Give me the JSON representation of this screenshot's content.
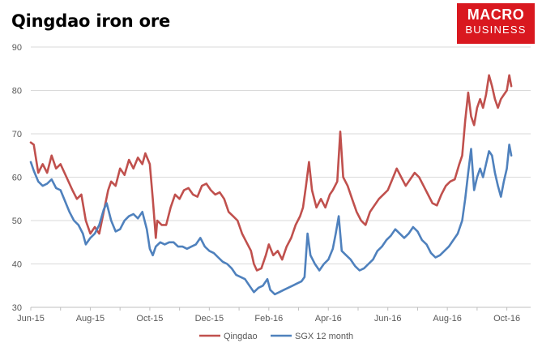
{
  "chart_data": {
    "type": "line",
    "title": "Qingdao iron ore",
    "xlabel": "",
    "ylabel": "",
    "ylim": [
      30,
      90
    ],
    "yticks": [
      30,
      40,
      50,
      60,
      70,
      80,
      90
    ],
    "x_tick_labels": [
      "Jun-15",
      "Aug-15",
      "Oct-15",
      "Dec-15",
      "Feb-16",
      "Apr-16",
      "Jun-16",
      "Aug-16",
      "Oct-16"
    ],
    "x_tick_months": [
      0,
      2,
      4,
      6,
      8,
      10,
      12,
      14,
      16
    ],
    "grid": true,
    "legend_position": "bottom",
    "series": [
      {
        "name": "Qingdao",
        "color": "#c0504d",
        "points": [
          [
            0.0,
            68.0
          ],
          [
            0.1,
            67.5
          ],
          [
            0.25,
            61.0
          ],
          [
            0.4,
            63.0
          ],
          [
            0.55,
            61.0
          ],
          [
            0.7,
            65.0
          ],
          [
            0.85,
            62.0
          ],
          [
            1.0,
            63.0
          ],
          [
            1.2,
            60.0
          ],
          [
            1.4,
            57.0
          ],
          [
            1.55,
            55.0
          ],
          [
            1.7,
            56.0
          ],
          [
            1.85,
            50.0
          ],
          [
            2.0,
            47.0
          ],
          [
            2.15,
            48.5
          ],
          [
            2.3,
            47.0
          ],
          [
            2.45,
            52.0
          ],
          [
            2.6,
            57.0
          ],
          [
            2.7,
            59.0
          ],
          [
            2.85,
            58.0
          ],
          [
            3.0,
            62.0
          ],
          [
            3.15,
            60.5
          ],
          [
            3.3,
            64.0
          ],
          [
            3.45,
            62.0
          ],
          [
            3.6,
            64.5
          ],
          [
            3.75,
            63.0
          ],
          [
            3.85,
            65.5
          ],
          [
            4.0,
            63.0
          ],
          [
            4.1,
            55.0
          ],
          [
            4.2,
            46.0
          ],
          [
            4.25,
            50.0
          ],
          [
            4.4,
            49.0
          ],
          [
            4.55,
            49.0
          ],
          [
            4.7,
            53.0
          ],
          [
            4.85,
            56.0
          ],
          [
            5.0,
            55.0
          ],
          [
            5.15,
            57.0
          ],
          [
            5.3,
            57.5
          ],
          [
            5.45,
            56.0
          ],
          [
            5.6,
            55.5
          ],
          [
            5.75,
            58.0
          ],
          [
            5.9,
            58.5
          ],
          [
            6.05,
            57.0
          ],
          [
            6.2,
            56.0
          ],
          [
            6.35,
            56.5
          ],
          [
            6.5,
            55.0
          ],
          [
            6.65,
            52.0
          ],
          [
            6.8,
            51.0
          ],
          [
            6.95,
            50.0
          ],
          [
            7.1,
            47.0
          ],
          [
            7.25,
            45.0
          ],
          [
            7.4,
            43.0
          ],
          [
            7.5,
            40.0
          ],
          [
            7.6,
            38.5
          ],
          [
            7.75,
            39.0
          ],
          [
            7.9,
            42.0
          ],
          [
            8.0,
            44.5
          ],
          [
            8.15,
            42.0
          ],
          [
            8.3,
            43.0
          ],
          [
            8.45,
            41.0
          ],
          [
            8.6,
            44.0
          ],
          [
            8.75,
            46.0
          ],
          [
            8.9,
            49.0
          ],
          [
            9.05,
            51.0
          ],
          [
            9.15,
            53.0
          ],
          [
            9.25,
            58.0
          ],
          [
            9.35,
            63.5
          ],
          [
            9.45,
            57.0
          ],
          [
            9.6,
            53.0
          ],
          [
            9.75,
            55.0
          ],
          [
            9.9,
            53.0
          ],
          [
            10.05,
            56.0
          ],
          [
            10.15,
            57.0
          ],
          [
            10.3,
            59.0
          ],
          [
            10.4,
            70.5
          ],
          [
            10.5,
            60.0
          ],
          [
            10.65,
            58.0
          ],
          [
            10.8,
            55.0
          ],
          [
            10.95,
            52.0
          ],
          [
            11.1,
            50.0
          ],
          [
            11.25,
            49.0
          ],
          [
            11.4,
            52.0
          ],
          [
            11.55,
            53.5
          ],
          [
            11.7,
            55.0
          ],
          [
            11.85,
            56.0
          ],
          [
            12.0,
            57.0
          ],
          [
            12.15,
            59.5
          ],
          [
            12.3,
            62.0
          ],
          [
            12.45,
            60.0
          ],
          [
            12.6,
            58.0
          ],
          [
            12.75,
            59.5
          ],
          [
            12.9,
            61.0
          ],
          [
            13.05,
            60.0
          ],
          [
            13.2,
            58.0
          ],
          [
            13.35,
            56.0
          ],
          [
            13.5,
            54.0
          ],
          [
            13.65,
            53.5
          ],
          [
            13.8,
            56.0
          ],
          [
            13.95,
            58.0
          ],
          [
            14.1,
            59.0
          ],
          [
            14.25,
            59.5
          ],
          [
            14.4,
            63.0
          ],
          [
            14.5,
            65.0
          ],
          [
            14.6,
            73.0
          ],
          [
            14.7,
            79.5
          ],
          [
            14.8,
            74.0
          ],
          [
            14.9,
            72.0
          ],
          [
            15.0,
            76.0
          ],
          [
            15.1,
            78.0
          ],
          [
            15.2,
            76.0
          ],
          [
            15.3,
            79.0
          ],
          [
            15.4,
            83.5
          ],
          [
            15.5,
            81.0
          ],
          [
            15.6,
            78.0
          ],
          [
            15.7,
            76.0
          ],
          [
            15.8,
            78.0
          ],
          [
            15.9,
            79.0
          ],
          [
            16.0,
            80.0
          ],
          [
            16.08,
            83.5
          ],
          [
            16.15,
            81.0
          ]
        ]
      },
      {
        "name": "SGX 12 month",
        "color": "#4f81bd",
        "points": [
          [
            0.0,
            63.5
          ],
          [
            0.1,
            61.5
          ],
          [
            0.25,
            59.0
          ],
          [
            0.4,
            58.0
          ],
          [
            0.55,
            58.5
          ],
          [
            0.7,
            59.5
          ],
          [
            0.85,
            57.5
          ],
          [
            1.0,
            57.0
          ],
          [
            1.15,
            54.5
          ],
          [
            1.3,
            52.0
          ],
          [
            1.45,
            50.0
          ],
          [
            1.6,
            49.0
          ],
          [
            1.75,
            47.0
          ],
          [
            1.85,
            44.5
          ],
          [
            2.0,
            46.0
          ],
          [
            2.15,
            47.0
          ],
          [
            2.3,
            49.0
          ],
          [
            2.45,
            52.5
          ],
          [
            2.55,
            54.0
          ],
          [
            2.7,
            50.0
          ],
          [
            2.85,
            47.5
          ],
          [
            3.0,
            48.0
          ],
          [
            3.15,
            50.0
          ],
          [
            3.3,
            51.0
          ],
          [
            3.45,
            51.5
          ],
          [
            3.6,
            50.5
          ],
          [
            3.75,
            52.0
          ],
          [
            3.9,
            48.0
          ],
          [
            4.0,
            43.5
          ],
          [
            4.1,
            42.0
          ],
          [
            4.2,
            44.0
          ],
          [
            4.35,
            45.0
          ],
          [
            4.5,
            44.5
          ],
          [
            4.65,
            45.0
          ],
          [
            4.8,
            45.0
          ],
          [
            4.95,
            44.0
          ],
          [
            5.1,
            44.0
          ],
          [
            5.25,
            43.5
          ],
          [
            5.4,
            44.0
          ],
          [
            5.55,
            44.5
          ],
          [
            5.7,
            46.0
          ],
          [
            5.85,
            44.0
          ],
          [
            6.0,
            43.0
          ],
          [
            6.15,
            42.5
          ],
          [
            6.3,
            41.5
          ],
          [
            6.45,
            40.5
          ],
          [
            6.6,
            40.0
          ],
          [
            6.75,
            39.0
          ],
          [
            6.9,
            37.5
          ],
          [
            7.05,
            37.0
          ],
          [
            7.2,
            36.5
          ],
          [
            7.35,
            35.0
          ],
          [
            7.5,
            33.5
          ],
          [
            7.65,
            34.5
          ],
          [
            7.8,
            35.0
          ],
          [
            7.95,
            36.5
          ],
          [
            8.05,
            34.0
          ],
          [
            8.2,
            33.0
          ],
          [
            8.35,
            33.5
          ],
          [
            8.5,
            34.0
          ],
          [
            8.65,
            34.5
          ],
          [
            8.8,
            35.0
          ],
          [
            8.95,
            35.5
          ],
          [
            9.1,
            36.0
          ],
          [
            9.2,
            37.0
          ],
          [
            9.3,
            47.0
          ],
          [
            9.4,
            42.0
          ],
          [
            9.55,
            40.0
          ],
          [
            9.7,
            38.5
          ],
          [
            9.85,
            40.0
          ],
          [
            10.0,
            41.0
          ],
          [
            10.15,
            43.5
          ],
          [
            10.25,
            47.0
          ],
          [
            10.35,
            51.0
          ],
          [
            10.45,
            43.0
          ],
          [
            10.6,
            42.0
          ],
          [
            10.75,
            41.0
          ],
          [
            10.9,
            39.5
          ],
          [
            11.05,
            38.5
          ],
          [
            11.2,
            39.0
          ],
          [
            11.35,
            40.0
          ],
          [
            11.5,
            41.0
          ],
          [
            11.65,
            43.0
          ],
          [
            11.8,
            44.0
          ],
          [
            11.95,
            45.5
          ],
          [
            12.1,
            46.5
          ],
          [
            12.25,
            48.0
          ],
          [
            12.4,
            47.0
          ],
          [
            12.55,
            46.0
          ],
          [
            12.7,
            47.0
          ],
          [
            12.85,
            48.5
          ],
          [
            13.0,
            47.5
          ],
          [
            13.15,
            45.5
          ],
          [
            13.3,
            44.5
          ],
          [
            13.45,
            42.5
          ],
          [
            13.6,
            41.5
          ],
          [
            13.75,
            42.0
          ],
          [
            13.9,
            43.0
          ],
          [
            14.05,
            44.0
          ],
          [
            14.2,
            45.5
          ],
          [
            14.35,
            47.0
          ],
          [
            14.5,
            50.0
          ],
          [
            14.6,
            55.0
          ],
          [
            14.7,
            61.0
          ],
          [
            14.8,
            66.5
          ],
          [
            14.9,
            57.0
          ],
          [
            15.0,
            60.0
          ],
          [
            15.1,
            62.0
          ],
          [
            15.2,
            60.0
          ],
          [
            15.3,
            63.0
          ],
          [
            15.4,
            66.0
          ],
          [
            15.5,
            65.0
          ],
          [
            15.6,
            61.0
          ],
          [
            15.7,
            58.0
          ],
          [
            15.8,
            55.5
          ],
          [
            15.9,
            59.0
          ],
          [
            16.0,
            62.0
          ],
          [
            16.08,
            67.5
          ],
          [
            16.15,
            65.0
          ]
        ]
      }
    ]
  },
  "logo": {
    "line1": "MACRO",
    "line2": "BUSINESS"
  }
}
